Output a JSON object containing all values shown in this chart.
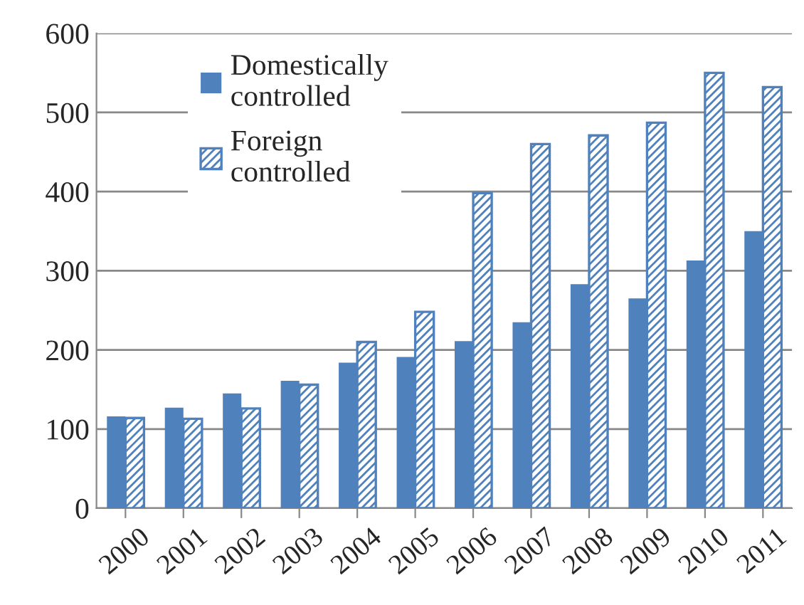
{
  "chart_data": {
    "type": "bar",
    "categories": [
      "2000",
      "2001",
      "2002",
      "2003",
      "2004",
      "2005",
      "2006",
      "2007",
      "2008",
      "2009",
      "2010",
      "2011"
    ],
    "series": [
      {
        "name": "Domestically\ncontrolled",
        "color": "#4f81bd",
        "values": [
          116,
          127,
          145,
          161,
          184,
          191,
          211,
          235,
          283,
          265,
          313,
          350
        ]
      },
      {
        "name": "Foreign\ncontrolled",
        "color": "#4f81bd",
        "values": [
          114,
          113,
          126,
          156,
          210,
          248,
          398,
          460,
          471,
          487,
          550,
          532
        ]
      }
    ],
    "ylim": [
      0,
      600
    ],
    "yticks": [
      0,
      100,
      200,
      300,
      400,
      500,
      600
    ],
    "grid": "y",
    "legend": "top left"
  }
}
